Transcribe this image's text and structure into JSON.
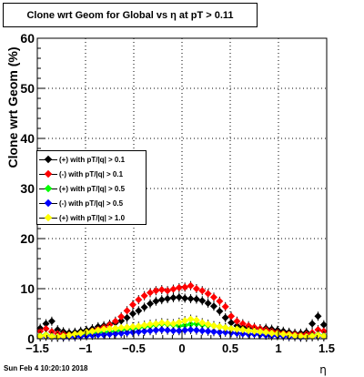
{
  "title": "Clone wrt Geom for Global vs   η at pT > 0.11",
  "footer_date": "Sun Feb  4 10:20:10 2018",
  "chart_data": {
    "type": "scatter",
    "title": "Clone wrt Geom for Global vs   η at pT > 0.11",
    "xlabel": "η",
    "ylabel": "Clone wrt Geom (%)",
    "xlim": [
      -1.5,
      1.5
    ],
    "ylim": [
      0,
      60
    ],
    "xticks": [
      -1.5,
      -1,
      -0.5,
      0,
      0.5,
      1,
      1.5
    ],
    "xtick_labels": [
      "−1.5",
      "−1",
      "−0.5",
      "0",
      "0.5",
      "1",
      "1.5"
    ],
    "yticks": [
      0,
      10,
      20,
      30,
      40,
      50,
      60
    ],
    "grid": true,
    "legend_position": "left-middle",
    "series": [
      {
        "name": "(+) with pT/|q| > 0.1",
        "color": "#000000",
        "x": [
          -1.47,
          -1.41,
          -1.35,
          -1.29,
          -1.23,
          -1.17,
          -1.11,
          -1.05,
          -0.99,
          -0.93,
          -0.87,
          -0.81,
          -0.75,
          -0.69,
          -0.63,
          -0.57,
          -0.51,
          -0.45,
          -0.39,
          -0.33,
          -0.27,
          -0.21,
          -0.15,
          -0.09,
          -0.03,
          0.03,
          0.09,
          0.15,
          0.21,
          0.27,
          0.33,
          0.39,
          0.45,
          0.51,
          0.57,
          0.63,
          0.69,
          0.75,
          0.81,
          0.87,
          0.93,
          0.99,
          1.05,
          1.11,
          1.17,
          1.23,
          1.29,
          1.35,
          1.41,
          1.47
        ],
        "y": [
          2.1,
          3.0,
          3.5,
          1.8,
          1.4,
          1.2,
          1.3,
          1.5,
          1.7,
          2.0,
          2.4,
          2.6,
          2.9,
          3.2,
          3.6,
          4.2,
          5.0,
          5.6,
          6.3,
          7.0,
          7.5,
          7.8,
          8.0,
          8.2,
          8.3,
          8.1,
          8.0,
          7.9,
          7.6,
          7.1,
          6.5,
          5.5,
          4.2,
          3.2,
          2.6,
          2.3,
          2.2,
          2.1,
          2.0,
          2.1,
          1.9,
          1.7,
          1.5,
          1.3,
          1.1,
          1.1,
          1.3,
          3.0,
          4.5,
          2.8
        ]
      },
      {
        "name": "(-) with pT/|q| > 0.1",
        "color": "#ff0000",
        "x": [
          -1.47,
          -1.41,
          -1.35,
          -1.29,
          -1.23,
          -1.17,
          -1.11,
          -1.05,
          -0.99,
          -0.93,
          -0.87,
          -0.81,
          -0.75,
          -0.69,
          -0.63,
          -0.57,
          -0.51,
          -0.45,
          -0.39,
          -0.33,
          -0.27,
          -0.21,
          -0.15,
          -0.09,
          -0.03,
          0.03,
          0.09,
          0.15,
          0.21,
          0.27,
          0.33,
          0.39,
          0.45,
          0.51,
          0.57,
          0.63,
          0.69,
          0.75,
          0.81,
          0.87,
          0.93,
          0.99,
          1.05,
          1.11,
          1.17,
          1.23,
          1.29,
          1.35,
          1.41,
          1.47
        ],
        "y": [
          1.5,
          2.0,
          1.4,
          1.0,
          0.9,
          0.8,
          0.9,
          1.1,
          1.3,
          1.6,
          1.9,
          2.3,
          2.8,
          3.5,
          4.4,
          5.6,
          6.8,
          7.8,
          8.6,
          9.2,
          9.6,
          9.8,
          9.6,
          9.9,
          10.2,
          10.3,
          10.6,
          10.0,
          9.6,
          9.0,
          8.3,
          7.5,
          6.4,
          4.5,
          3.5,
          3.0,
          2.6,
          2.3,
          2.0,
          1.8,
          1.5,
          1.3,
          1.1,
          1.0,
          0.9,
          0.8,
          0.9,
          1.2,
          1.8,
          1.5
        ]
      },
      {
        "name": "(+) with pT/|q| > 0.5",
        "color": "#00ff00",
        "x": [
          -1.47,
          -1.41,
          -1.35,
          -1.29,
          -1.23,
          -1.17,
          -1.11,
          -1.05,
          -0.99,
          -0.93,
          -0.87,
          -0.81,
          -0.75,
          -0.69,
          -0.63,
          -0.57,
          -0.51,
          -0.45,
          -0.39,
          -0.33,
          -0.27,
          -0.21,
          -0.15,
          -0.09,
          -0.03,
          0.03,
          0.09,
          0.15,
          0.21,
          0.27,
          0.33,
          0.39,
          0.45,
          0.51,
          0.57,
          0.63,
          0.69,
          0.75,
          0.81,
          0.87,
          0.93,
          0.99,
          1.05,
          1.11,
          1.17,
          1.23,
          1.29,
          1.35,
          1.41,
          1.47
        ],
        "y": [
          0.6,
          0.8,
          0.5,
          0.4,
          0.5,
          0.6,
          0.7,
          0.8,
          1.0,
          1.1,
          1.2,
          1.3,
          1.4,
          1.5,
          1.7,
          1.9,
          2.0,
          2.2,
          2.4,
          2.6,
          2.8,
          3.0,
          2.9,
          2.8,
          2.6,
          2.7,
          2.9,
          3.0,
          2.8,
          2.7,
          2.6,
          2.4,
          2.2,
          2.0,
          1.9,
          1.8,
          1.6,
          1.5,
          1.4,
          1.2,
          1.1,
          1.0,
          0.8,
          0.7,
          0.6,
          0.5,
          0.4,
          0.6,
          0.8,
          0.6
        ]
      },
      {
        "name": "(-) with pT/|q| > 0.5",
        "color": "#0000ff",
        "x": [
          -1.47,
          -1.41,
          -1.35,
          -1.29,
          -1.23,
          -1.17,
          -1.11,
          -1.05,
          -0.99,
          -0.93,
          -0.87,
          -0.81,
          -0.75,
          -0.69,
          -0.63,
          -0.57,
          -0.51,
          -0.45,
          -0.39,
          -0.33,
          -0.27,
          -0.21,
          -0.15,
          -0.09,
          -0.03,
          0.03,
          0.09,
          0.15,
          0.21,
          0.27,
          0.33,
          0.39,
          0.45,
          0.51,
          0.57,
          0.63,
          0.69,
          0.75,
          0.81,
          0.87,
          0.93,
          0.99,
          1.05,
          1.11,
          1.17,
          1.23,
          1.29,
          1.35,
          1.41,
          1.47
        ],
        "y": [
          0.4,
          0.5,
          0.3,
          0.3,
          0.3,
          0.4,
          0.4,
          0.5,
          0.6,
          0.7,
          0.8,
          0.8,
          0.9,
          1.0,
          1.1,
          1.2,
          1.3,
          1.4,
          1.5,
          1.6,
          1.7,
          1.8,
          1.7,
          1.6,
          1.6,
          1.7,
          1.8,
          1.7,
          1.6,
          1.5,
          1.4,
          1.3,
          1.3,
          1.2,
          1.1,
          1.0,
          0.9,
          0.9,
          0.8,
          0.7,
          0.6,
          0.6,
          0.5,
          0.4,
          0.4,
          0.3,
          0.3,
          0.4,
          0.5,
          0.4
        ]
      },
      {
        "name": "(+) with pT/|q| > 1.0",
        "color": "#ffff00",
        "x": [
          -1.47,
          -1.41,
          -1.35,
          -1.29,
          -1.23,
          -1.17,
          -1.11,
          -1.05,
          -0.99,
          -0.93,
          -0.87,
          -0.81,
          -0.75,
          -0.69,
          -0.63,
          -0.57,
          -0.51,
          -0.45,
          -0.39,
          -0.33,
          -0.27,
          -0.21,
          -0.15,
          -0.09,
          -0.03,
          0.03,
          0.09,
          0.15,
          0.21,
          0.27,
          0.33,
          0.39,
          0.45,
          0.51,
          0.57,
          0.63,
          0.69,
          0.75,
          0.81,
          0.87,
          0.93,
          0.99,
          1.05,
          1.11,
          1.17,
          1.23,
          1.29,
          1.35,
          1.41,
          1.47
        ],
        "y": [
          0.5,
          0.7,
          0.4,
          0.4,
          0.5,
          0.7,
          0.9,
          1.1,
          1.3,
          1.5,
          1.7,
          1.9,
          2.0,
          2.1,
          2.2,
          2.3,
          2.4,
          2.5,
          2.7,
          2.9,
          3.0,
          3.2,
          3.1,
          3.0,
          3.3,
          3.6,
          3.9,
          3.7,
          3.2,
          2.9,
          2.6,
          2.4,
          2.2,
          2.0,
          1.9,
          1.8,
          1.6,
          1.5,
          1.4,
          1.3,
          1.1,
          1.0,
          0.9,
          0.8,
          0.6,
          0.5,
          0.4,
          0.5,
          0.7,
          0.5
        ]
      }
    ]
  }
}
